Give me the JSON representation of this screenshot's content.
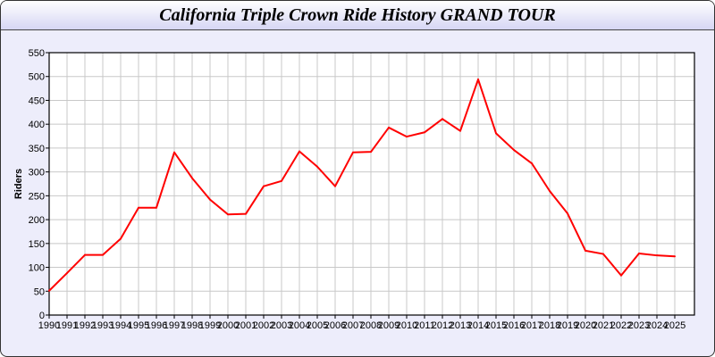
{
  "chart_data": {
    "type": "line",
    "title": "California Triple Crown Ride History GRAND TOUR",
    "xlabel": "",
    "ylabel": "Riders",
    "ylim": [
      0,
      550
    ],
    "yticks": [
      0,
      50,
      100,
      150,
      200,
      250,
      300,
      350,
      400,
      450,
      500,
      550
    ],
    "grid": true,
    "line_color": "#ff0000",
    "categories": [
      "1990",
      "1991",
      "1992",
      "1993",
      "1994",
      "1995",
      "1996",
      "1997",
      "1998",
      "1999",
      "2000",
      "2001",
      "2002",
      "2003",
      "2004",
      "2005",
      "2006",
      "2007",
      "2008",
      "2009",
      "2010",
      "2011",
      "2012",
      "2013",
      "2014",
      "2015",
      "2016",
      "2017",
      "2018",
      "2019",
      "2020",
      "2021",
      "2022",
      "2023",
      "2024",
      "2025"
    ],
    "series": [
      {
        "values": [
          51,
          88,
          126,
          126,
          160,
          225,
          225,
          341,
          287,
          242,
          211,
          212,
          270,
          281,
          343,
          311,
          270,
          341,
          342,
          393,
          374,
          383,
          411,
          386,
          494,
          381,
          346,
          318,
          260,
          213,
          135,
          128,
          83,
          129,
          125,
          123
        ]
      }
    ]
  }
}
